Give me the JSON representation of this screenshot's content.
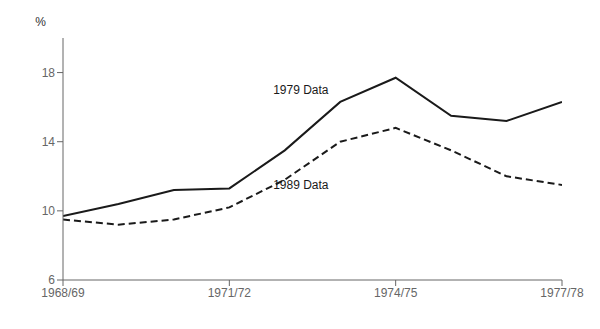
{
  "chart_data": {
    "type": "line",
    "ylabel": "%",
    "x": [
      0,
      1,
      2,
      3,
      4,
      5,
      6,
      7,
      8,
      9
    ],
    "xlim": [
      0,
      9
    ],
    "xticks": [
      {
        "value": 0,
        "label": "1968/69"
      },
      {
        "value": 3,
        "label": "1971/72"
      },
      {
        "value": 6,
        "label": "1974/75"
      },
      {
        "value": 9,
        "label": "1977/78"
      }
    ],
    "ylim": [
      6,
      20
    ],
    "yticks": [
      6,
      10,
      14,
      18
    ],
    "grid": false,
    "series": [
      {
        "color": "#1a1a1a",
        "line_style": "solid",
        "values": [
          9.7,
          10.4,
          11.2,
          11.3,
          13.5,
          16.3,
          17.7,
          15.5,
          15.2,
          16.3
        ]
      },
      {
        "color": "#1a1a1a",
        "line_style": "dashed",
        "values": [
          9.5,
          9.2,
          9.5,
          10.2,
          11.8,
          14.0,
          14.8,
          13.5,
          12.0,
          11.5
        ]
      }
    ],
    "annotations": [
      {
        "text": "1979  Data",
        "x": 3.7,
        "y": 17.0
      },
      {
        "text": "1989  Data",
        "x": 3.7,
        "y": 11.5
      }
    ]
  }
}
